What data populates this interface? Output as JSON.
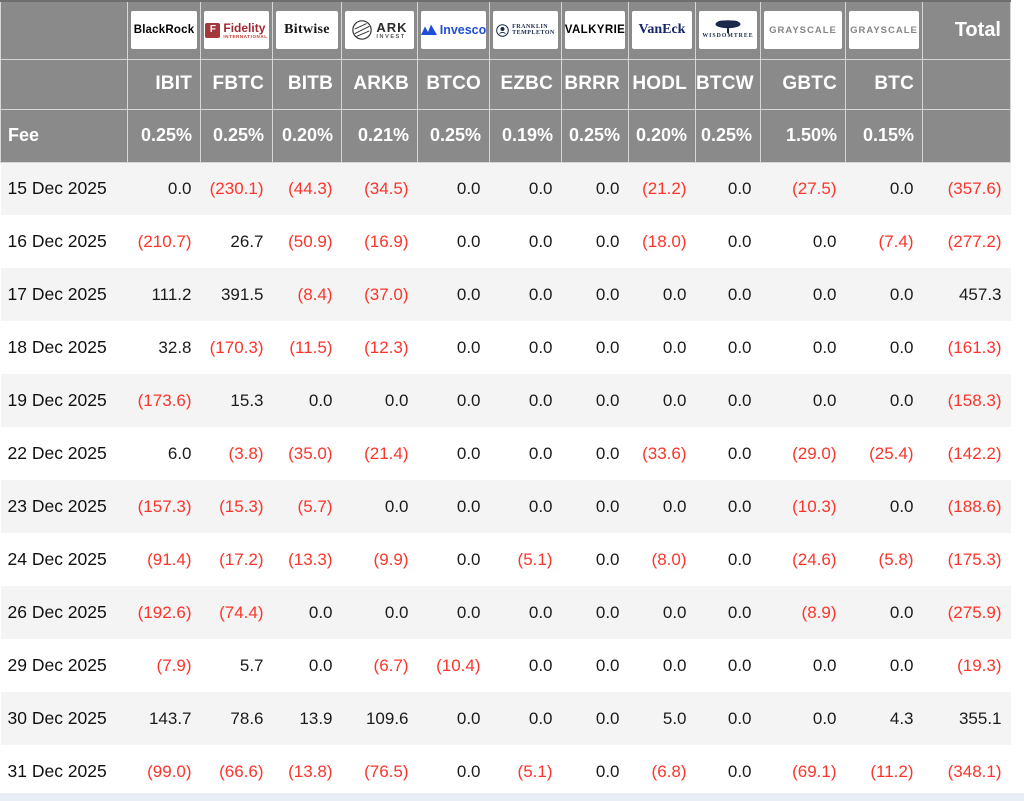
{
  "chart_data": {
    "type": "table",
    "fee_label": "Fee",
    "total_label": "Total",
    "providers": [
      {
        "name": "BlackRock",
        "ticker": "IBIT",
        "fee": "0.25%",
        "logo": {
          "type": "blackrock",
          "text": "BlackRock"
        }
      },
      {
        "name": "Fidelity",
        "ticker": "FBTC",
        "fee": "0.25%",
        "logo": {
          "type": "fidelity",
          "text": "Fidelity",
          "sub": "INTERNATIONAL",
          "mark": "F"
        }
      },
      {
        "name": "Bitwise",
        "ticker": "BITB",
        "fee": "0.20%",
        "logo": {
          "type": "bitwise",
          "text": "Bitwise"
        }
      },
      {
        "name": "ARK Invest",
        "ticker": "ARKB",
        "fee": "0.21%",
        "logo": {
          "type": "ark",
          "text": "ARK",
          "sub": "INVEST"
        }
      },
      {
        "name": "Invesco",
        "ticker": "BTCO",
        "fee": "0.25%",
        "logo": {
          "type": "invesco",
          "text": "Invesco"
        }
      },
      {
        "name": "Franklin Templeton",
        "ticker": "EZBC",
        "fee": "0.19%",
        "logo": {
          "type": "franklin",
          "text": "FRANKLIN",
          "sub": "TEMPLETON"
        }
      },
      {
        "name": "Valkyrie",
        "ticker": "BRRR",
        "fee": "0.25%",
        "logo": {
          "type": "valkyrie",
          "text": "VALKYRIE"
        }
      },
      {
        "name": "VanEck",
        "ticker": "HODL",
        "fee": "0.20%",
        "logo": {
          "type": "vaneck",
          "text": "VanEck"
        }
      },
      {
        "name": "WisdomTree",
        "ticker": "BTCW",
        "fee": "0.25%",
        "logo": {
          "type": "wisdomtree",
          "text": "WISDOMTREE"
        }
      },
      {
        "name": "Grayscale",
        "ticker": "GBTC",
        "fee": "1.50%",
        "logo": {
          "type": "grayscale",
          "text": "GRAYSCALE"
        }
      },
      {
        "name": "Grayscale",
        "ticker": "BTC",
        "fee": "0.15%",
        "logo": {
          "type": "grayscale",
          "text": "GRAYSCALE"
        }
      }
    ],
    "rows": [
      {
        "date": "15 Dec 2025",
        "values": [
          "0.0",
          "(230.1)",
          "(44.3)",
          "(34.5)",
          "0.0",
          "0.0",
          "0.0",
          "(21.2)",
          "0.0",
          "(27.5)",
          "0.0"
        ],
        "total": "(357.6)"
      },
      {
        "date": "16 Dec 2025",
        "values": [
          "(210.7)",
          "26.7",
          "(50.9)",
          "(16.9)",
          "0.0",
          "0.0",
          "0.0",
          "(18.0)",
          "0.0",
          "0.0",
          "(7.4)"
        ],
        "total": "(277.2)"
      },
      {
        "date": "17 Dec 2025",
        "values": [
          "111.2",
          "391.5",
          "(8.4)",
          "(37.0)",
          "0.0",
          "0.0",
          "0.0",
          "0.0",
          "0.0",
          "0.0",
          "0.0"
        ],
        "total": "457.3"
      },
      {
        "date": "18 Dec 2025",
        "values": [
          "32.8",
          "(170.3)",
          "(11.5)",
          "(12.3)",
          "0.0",
          "0.0",
          "0.0",
          "0.0",
          "0.0",
          "0.0",
          "0.0"
        ],
        "total": "(161.3)"
      },
      {
        "date": "19 Dec 2025",
        "values": [
          "(173.6)",
          "15.3",
          "0.0",
          "0.0",
          "0.0",
          "0.0",
          "0.0",
          "0.0",
          "0.0",
          "0.0",
          "0.0"
        ],
        "total": "(158.3)"
      },
      {
        "date": "22 Dec 2025",
        "values": [
          "6.0",
          "(3.8)",
          "(35.0)",
          "(21.4)",
          "0.0",
          "0.0",
          "0.0",
          "(33.6)",
          "0.0",
          "(29.0)",
          "(25.4)"
        ],
        "total": "(142.2)"
      },
      {
        "date": "23 Dec 2025",
        "values": [
          "(157.3)",
          "(15.3)",
          "(5.7)",
          "0.0",
          "0.0",
          "0.0",
          "0.0",
          "0.0",
          "0.0",
          "(10.3)",
          "0.0"
        ],
        "total": "(188.6)"
      },
      {
        "date": "24 Dec 2025",
        "values": [
          "(91.4)",
          "(17.2)",
          "(13.3)",
          "(9.9)",
          "0.0",
          "(5.1)",
          "0.0",
          "(8.0)",
          "0.0",
          "(24.6)",
          "(5.8)"
        ],
        "total": "(175.3)"
      },
      {
        "date": "26 Dec 2025",
        "values": [
          "(192.6)",
          "(74.4)",
          "0.0",
          "0.0",
          "0.0",
          "0.0",
          "0.0",
          "0.0",
          "0.0",
          "(8.9)",
          "0.0"
        ],
        "total": "(275.9)"
      },
      {
        "date": "29 Dec 2025",
        "values": [
          "(7.9)",
          "5.7",
          "0.0",
          "(6.7)",
          "(10.4)",
          "0.0",
          "0.0",
          "0.0",
          "0.0",
          "0.0",
          "0.0"
        ],
        "total": "(19.3)"
      },
      {
        "date": "30 Dec 2025",
        "values": [
          "143.7",
          "78.6",
          "13.9",
          "109.6",
          "0.0",
          "0.0",
          "0.0",
          "5.0",
          "0.0",
          "0.0",
          "4.3"
        ],
        "total": "355.1"
      },
      {
        "date": "31 Dec 2025",
        "values": [
          "(99.0)",
          "(66.6)",
          "(13.8)",
          "(76.5)",
          "0.0",
          "(5.1)",
          "0.0",
          "(6.8)",
          "0.0",
          "(69.1)",
          "(11.2)"
        ],
        "total": "(348.1)"
      }
    ]
  },
  "colors": {
    "header_bg": "#8A8A8A",
    "negative_red": "#FB352B",
    "text_dark": "#1B1B1D",
    "row_alt": "#F4F4F4",
    "grid_line": "#D6D6D6",
    "bottom_strip": "#E9EDF6"
  }
}
